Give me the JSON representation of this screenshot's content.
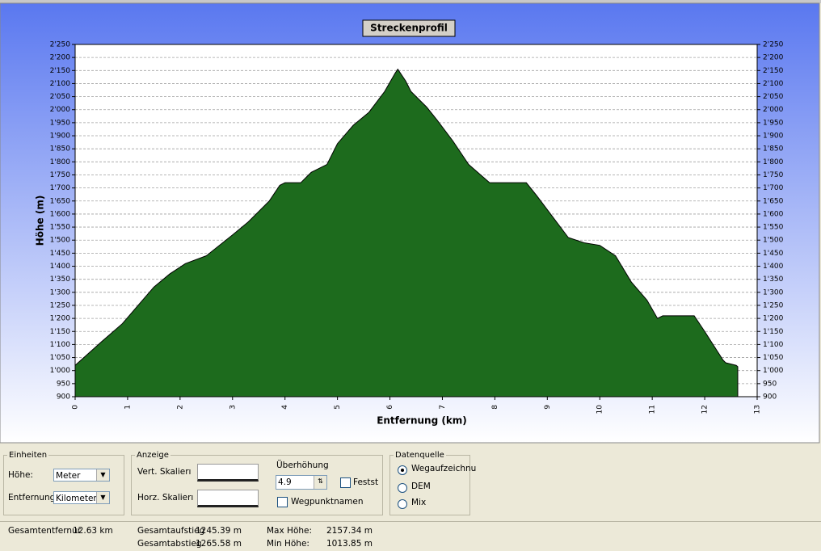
{
  "chart_data": {
    "type": "area",
    "title": "Streckenprofil",
    "x_label": "Entfernung (km)",
    "y_label": "Höhe (m)",
    "x": [
      0,
      0.5,
      0.9,
      1.2,
      1.5,
      1.8,
      2.1,
      2.5,
      3.0,
      3.3,
      3.7,
      3.9,
      4.0,
      4.3,
      4.5,
      4.8,
      5.0,
      5.3,
      5.6,
      5.9,
      6.1,
      6.15,
      6.3,
      6.4,
      6.7,
      6.9,
      7.2,
      7.5,
      7.9,
      8.3,
      8.6,
      8.8,
      9.1,
      9.4,
      9.7,
      10.0,
      10.3,
      10.6,
      10.9,
      11.1,
      11.2,
      11.8,
      12.0,
      12.35,
      12.4,
      12.6,
      12.63
    ],
    "values": [
      1020,
      1110,
      1180,
      1250,
      1320,
      1370,
      1410,
      1440,
      1520,
      1570,
      1650,
      1710,
      1720,
      1720,
      1760,
      1790,
      1870,
      1940,
      1990,
      2070,
      2140,
      2155,
      2110,
      2070,
      2010,
      1960,
      1880,
      1790,
      1720,
      1720,
      1720,
      1670,
      1590,
      1510,
      1490,
      1480,
      1440,
      1340,
      1270,
      1200,
      1210,
      1210,
      1150,
      1040,
      1030,
      1020,
      1015
    ],
    "color": "#1d6b1d",
    "xlim": [
      0,
      13
    ],
    "xticks": [
      0,
      1,
      2,
      3,
      4,
      5,
      6,
      7,
      8,
      9,
      10,
      11,
      12,
      13
    ],
    "ylim": [
      900,
      2250
    ],
    "yticks": [
      900,
      950,
      {
        "value": 1000,
        "label": "1'000"
      },
      {
        "value": 1050,
        "label": "1'050"
      },
      {
        "value": 1100,
        "label": "1'100"
      },
      {
        "value": 1150,
        "label": "1'150"
      },
      {
        "value": 1200,
        "label": "1'200"
      },
      {
        "value": 1250,
        "label": "1'250"
      },
      {
        "value": 1300,
        "label": "1'300"
      },
      {
        "value": 1350,
        "label": "1'350"
      },
      {
        "value": 1400,
        "label": "1'400"
      },
      {
        "value": 1450,
        "label": "1'450"
      },
      {
        "value": 1500,
        "label": "1'500"
      },
      {
        "value": 1550,
        "label": "1'550"
      },
      {
        "value": 1600,
        "label": "1'600"
      },
      {
        "value": 1650,
        "label": "1'650"
      },
      {
        "value": 1700,
        "label": "1'700"
      },
      {
        "value": 1750,
        "label": "1'750"
      },
      {
        "value": 1800,
        "label": "1'800"
      },
      {
        "value": 1850,
        "label": "1'850"
      },
      {
        "value": 1900,
        "label": "1'900"
      },
      {
        "value": 1950,
        "label": "1'950"
      },
      {
        "value": 2000,
        "label": "2'000"
      },
      {
        "value": 2050,
        "label": "2'050"
      },
      {
        "value": 2100,
        "label": "2'100"
      },
      {
        "value": 2150,
        "label": "2'150"
      },
      {
        "value": 2200,
        "label": "2'200"
      },
      {
        "value": 2250,
        "label": "2'250"
      }
    ],
    "grid": true
  },
  "controls": {
    "units": {
      "title": "Einheiten",
      "height_label": "Höhe:",
      "height_value": "Meter",
      "distance_label": "Entfernung:",
      "distance_value": "Kilometer"
    },
    "display": {
      "title": "Anzeige",
      "vert_scale": "Vert. Skalierı",
      "horz_scale": "Horz. Skalierı",
      "exaggeration_label": "Überhöhung",
      "exaggeration_value": "4.9",
      "fixed": "Festst",
      "waypoint_names": "Wegpunktnamen"
    },
    "source": {
      "title": "Datenquelle",
      "options": [
        "Wegaufzeichnu",
        "DEM",
        "Mix"
      ]
    }
  },
  "stats": [
    {
      "label": "Gesamtentfernur",
      "value": "12.63 km"
    },
    {
      "label": "Gesamtaufstieg",
      "value": "1245.39 m"
    },
    {
      "label": "Gesamtabstieg",
      "value": "1265.58 m"
    },
    {
      "label": "Max Höhe:",
      "value": "2157.34 m"
    },
    {
      "label": "Min Höhe:",
      "value": "1013.85 m"
    }
  ]
}
